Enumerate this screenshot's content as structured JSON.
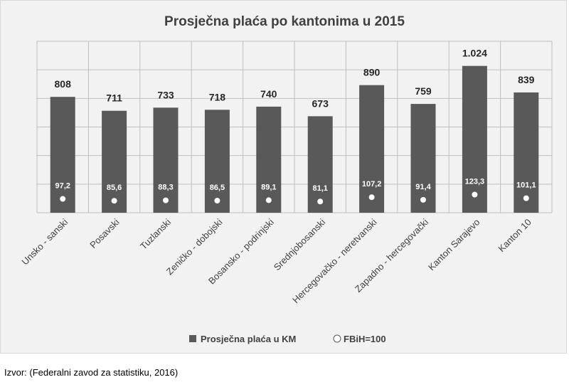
{
  "chart_data": {
    "type": "bar",
    "title": "Prosječna plaća po kantonima u 2015",
    "categories": [
      "Unsko - sanski",
      "Posavski",
      "Tuzlanski",
      "Zeničko - dobojski",
      "Bosansko - podrinjski",
      "Srednjobosanski",
      "Hercegovačko - neretvanski",
      "Zapadno - hercegovački",
      "Kanton Sarajevo",
      "Kanton 10"
    ],
    "series": [
      {
        "name": "Prosječna plaća u KM",
        "values": [
          808,
          711,
          733,
          718,
          740,
          673,
          890,
          759,
          1024,
          839
        ],
        "labels": [
          "808",
          "711",
          "733",
          "718",
          "740",
          "673",
          "890",
          "759",
          "1.024",
          "839"
        ]
      },
      {
        "name": "FBiH=100",
        "values": [
          97.2,
          85.6,
          88.3,
          86.5,
          89.1,
          81.1,
          107.2,
          91.4,
          123.3,
          101.1
        ],
        "labels": [
          "97,2",
          "85,6",
          "88,3",
          "86,5",
          "89,1",
          "81,1",
          "107,2",
          "91,4",
          "123,3",
          "101,1"
        ]
      }
    ],
    "grid": true,
    "legend_position": "bottom",
    "colors": {
      "bars": "#595959",
      "markers": "#ffffff",
      "grid": "#bfbfbf",
      "background": "#f2f2f2"
    }
  },
  "source": "Izvor:  (Federalni zavod za statistiku, 2016)"
}
